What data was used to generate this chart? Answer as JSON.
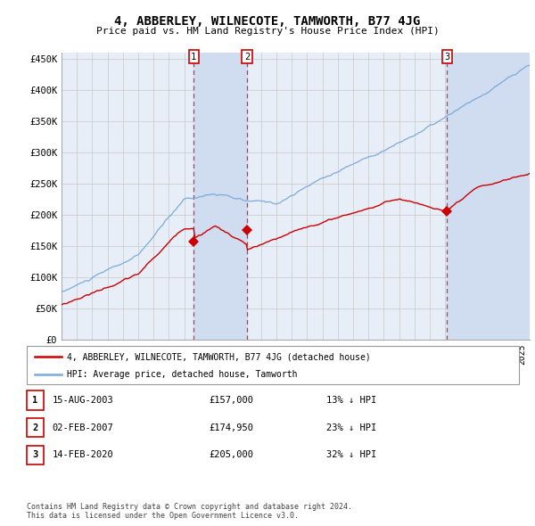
{
  "title": "4, ABBERLEY, WILNECOTE, TAMWORTH, B77 4JG",
  "subtitle": "Price paid vs. HM Land Registry's House Price Index (HPI)",
  "ylabel_ticks": [
    "£0",
    "£50K",
    "£100K",
    "£150K",
    "£200K",
    "£250K",
    "£300K",
    "£350K",
    "£400K",
    "£450K"
  ],
  "ylabel_values": [
    0,
    50000,
    100000,
    150000,
    200000,
    250000,
    300000,
    350000,
    400000,
    450000
  ],
  "ylim": [
    0,
    460000
  ],
  "xlim_start": 1995.0,
  "xlim_end": 2025.5,
  "hpi_color": "#7aabdb",
  "price_color": "#cc0000",
  "bg_color": "#e8eef8",
  "shade_color": "#d0dcef",
  "grid_color": "#c8c8c8",
  "sale1_x": 2003.617,
  "sale1_y": 157000,
  "sale2_x": 2007.085,
  "sale2_y": 174950,
  "sale3_x": 2020.12,
  "sale3_y": 205000,
  "sale1_date": "15-AUG-2003",
  "sale1_price": "£157,000",
  "sale1_hpi": "13% ↓ HPI",
  "sale2_date": "02-FEB-2007",
  "sale2_price": "£174,950",
  "sale2_hpi": "23% ↓ HPI",
  "sale3_date": "14-FEB-2020",
  "sale3_price": "£205,000",
  "sale3_hpi": "32% ↓ HPI",
  "footnote": "Contains HM Land Registry data © Crown copyright and database right 2024.\nThis data is licensed under the Open Government Licence v3.0.",
  "legend_line1": "4, ABBERLEY, WILNECOTE, TAMWORTH, B77 4JG (detached house)",
  "legend_line2": "HPI: Average price, detached house, Tamworth"
}
